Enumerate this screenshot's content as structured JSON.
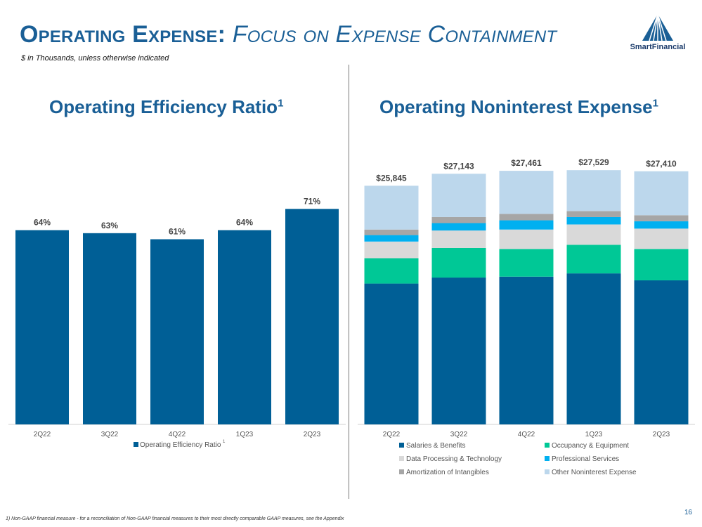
{
  "header": {
    "title_main": "Operating Expense:",
    "title_sub": "Focus on Expense Containment",
    "subtitle": "$ in Thousands, unless otherwise indicated",
    "logo_text": "SmartFinancial"
  },
  "colors": {
    "primary": "#005f96",
    "salaries": "#005f96",
    "occupancy": "#00c896",
    "data_processing": "#d9d9d9",
    "professional": "#00b0f0",
    "amortization": "#a6a6a6",
    "other": "#bcd7ec"
  },
  "left_chart": {
    "title": "Operating Efficiency Ratio",
    "title_sup": "1"
  },
  "right_chart": {
    "title": "Operating Noninterest Expense",
    "title_sup": "1"
  },
  "chart_data": [
    {
      "type": "bar",
      "title": "Operating Efficiency Ratio1",
      "categories": [
        "2Q22",
        "3Q22",
        "4Q22",
        "1Q23",
        "2Q23"
      ],
      "series": [
        {
          "name": "Operating Efficiency Ratio",
          "values": [
            64,
            63,
            61,
            64,
            71
          ]
        }
      ],
      "data_labels": [
        "64%",
        "63%",
        "61%",
        "64%",
        "71%"
      ],
      "legend_sup": "1",
      "ylim": [
        0,
        100
      ],
      "legend": "bottom"
    },
    {
      "type": "bar",
      "stacked": true,
      "title": "Operating Noninterest Expense1",
      "categories": [
        "2Q22",
        "3Q22",
        "4Q22",
        "1Q23",
        "2Q23"
      ],
      "series": [
        {
          "name": "Salaries & Benefits",
          "values": [
            15250,
            15900,
            16000,
            16350,
            15600
          ]
        },
        {
          "name": "Occupancy & Equipment",
          "values": [
            2750,
            3200,
            3000,
            3100,
            3400
          ]
        },
        {
          "name": "Data Processing & Technology",
          "values": [
            1800,
            1900,
            2100,
            2200,
            2200
          ]
        },
        {
          "name": "Professional Services",
          "values": [
            700,
            800,
            1000,
            800,
            800
          ]
        },
        {
          "name": "Amortization of Intangibles",
          "values": [
            600,
            650,
            700,
            650,
            650
          ]
        },
        {
          "name": "Other Noninterest Expense",
          "values": [
            4745,
            4693,
            4661,
            4429,
            4760
          ]
        }
      ],
      "totals": [
        "$25,845",
        "$27,143",
        "$27,461",
        "$27,529",
        "$27,410"
      ],
      "ylim": [
        0,
        28000
      ],
      "legend": "bottom"
    }
  ],
  "footnote": "1) Non-GAAP financial measure - for a reconciliation of Non-GAAP financial measures to their most directly comparable GAAP measures, see the Appendix",
  "page_number": "16"
}
